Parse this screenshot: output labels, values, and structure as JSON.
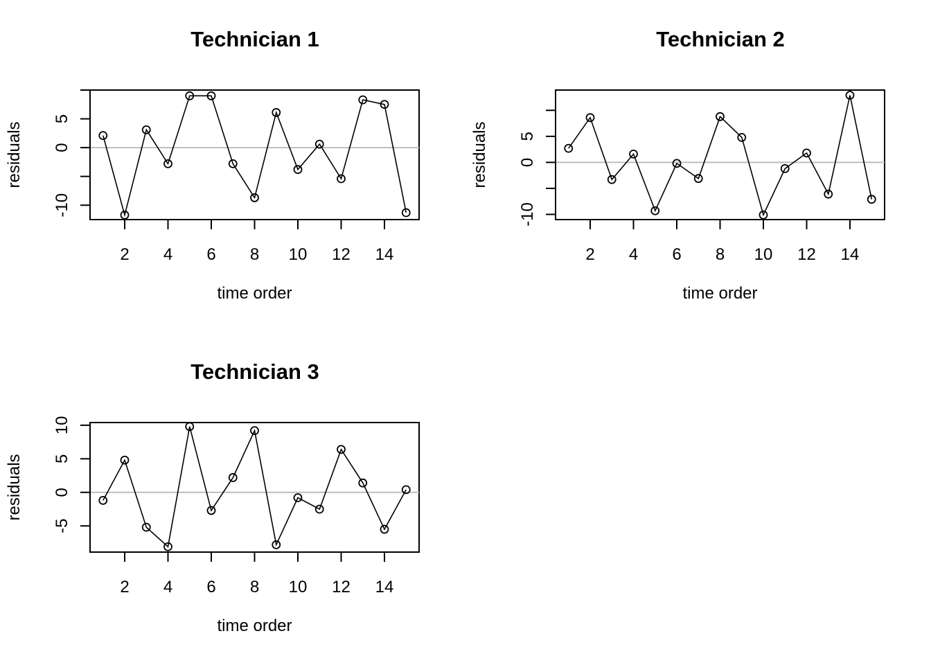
{
  "chart_data": [
    {
      "type": "line",
      "title": "Technician 1",
      "xlabel": "time order",
      "ylabel": "residuals",
      "x": [
        1,
        2,
        3,
        4,
        5,
        6,
        7,
        8,
        9,
        10,
        11,
        12,
        13,
        14,
        15
      ],
      "y": [
        2.1,
        -11.7,
        3.1,
        -2.8,
        9.0,
        9.0,
        -2.8,
        -8.7,
        6.1,
        -3.8,
        0.6,
        -5.4,
        8.3,
        7.5,
        -11.3
      ],
      "xlim": [
        0.4,
        15.6
      ],
      "ylim": [
        -12.5,
        10
      ],
      "xticks": [
        2,
        4,
        6,
        8,
        10,
        12,
        14
      ],
      "yticks": [
        -10,
        -5,
        0,
        5,
        10
      ],
      "ytick_labels": [
        "-10",
        "",
        "0",
        "5",
        ""
      ],
      "reference_line": 0,
      "marker": "open-circle",
      "grid": false
    },
    {
      "type": "line",
      "title": "Technician 2",
      "xlabel": "time order",
      "ylabel": "residuals",
      "x": [
        1,
        2,
        3,
        4,
        5,
        6,
        7,
        8,
        9,
        10,
        11,
        12,
        13,
        14,
        15
      ],
      "y": [
        2.7,
        8.6,
        -3.3,
        1.6,
        -9.3,
        -0.2,
        -3.1,
        8.8,
        4.8,
        -10.1,
        -1.2,
        1.8,
        -6.1,
        12.9,
        -7.1
      ],
      "xlim": [
        0.4,
        15.6
      ],
      "ylim": [
        -11,
        13.9
      ],
      "xticks": [
        2,
        4,
        6,
        8,
        10,
        12,
        14
      ],
      "yticks": [
        -10,
        -5,
        0,
        5,
        10
      ],
      "ytick_labels": [
        "-10",
        "",
        "0",
        "5",
        ""
      ],
      "reference_line": 0,
      "marker": "open-circle",
      "grid": false
    },
    {
      "type": "line",
      "title": "Technician 3",
      "xlabel": "time order",
      "ylabel": "residuals",
      "x": [
        1,
        2,
        3,
        4,
        5,
        6,
        7,
        8,
        9,
        10,
        11,
        12,
        13,
        14,
        15
      ],
      "y": [
        -1.2,
        4.8,
        -5.2,
        -8.1,
        9.8,
        -2.7,
        2.2,
        9.2,
        -7.8,
        -0.8,
        -2.5,
        6.4,
        1.4,
        -5.5,
        0.4
      ],
      "xlim": [
        0.4,
        15.6
      ],
      "ylim": [
        -8.9,
        10.4
      ],
      "xticks": [
        2,
        4,
        6,
        8,
        10,
        12,
        14
      ],
      "yticks": [
        -5,
        0,
        5,
        10
      ],
      "ytick_labels": [
        "-5",
        "0",
        "5",
        "10"
      ],
      "reference_line": 0,
      "marker": "open-circle",
      "grid": false
    }
  ]
}
